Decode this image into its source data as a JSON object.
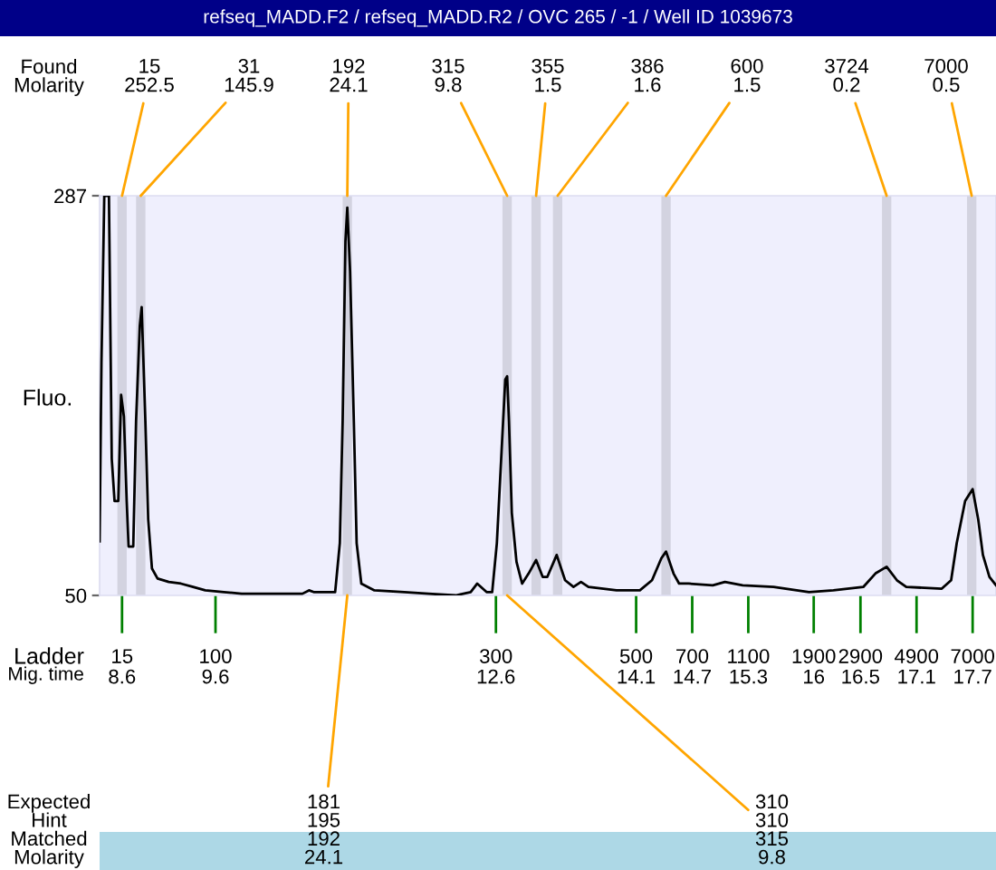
{
  "chart_data": {
    "type": "line",
    "title": "refseq_MADD.F2 / refseq_MADD.R2 / OVC 265 / -1 / Well ID 1039673",
    "xlabel": "Mig. time",
    "ylabel": "Fluo.",
    "x": [
      8.36,
      8.38,
      8.41,
      8.46,
      8.49,
      8.52,
      8.56,
      8.59,
      8.62,
      8.65,
      8.67,
      8.72,
      8.75,
      8.79,
      8.81,
      8.85,
      8.88,
      8.92,
      8.98,
      9.1,
      9.23,
      9.36,
      9.49,
      9.69,
      9.88,
      10.53,
      10.6,
      10.65,
      10.88,
      10.93,
      10.96,
      10.99,
      11.01,
      11.04,
      11.08,
      11.11,
      11.16,
      11.3,
      11.62,
      11.88,
      12.17,
      12.33,
      12.4,
      12.5,
      12.56,
      12.61,
      12.66,
      12.7,
      12.72,
      12.74,
      12.77,
      12.82,
      12.88,
      12.95,
      13.03,
      13.1,
      13.15,
      13.25,
      13.34,
      13.43,
      13.51,
      13.59,
      13.89,
      14.14,
      14.27,
      14.37,
      14.42,
      14.5,
      14.56,
      14.66,
      14.92,
      15.05,
      15.24,
      15.57,
      15.95,
      16.21,
      16.53,
      16.66,
      16.78,
      16.89,
      16.99,
      17.37,
      17.47,
      17.53,
      17.62,
      17.7,
      17.76,
      17.81,
      17.88,
      17.95
    ],
    "series": [
      {
        "color": "#000000",
        "values": [
          82,
          188,
          287,
          287,
          131,
          106,
          106,
          169,
          156,
          106,
          79,
          79,
          153,
          210,
          221,
          153,
          95,
          66,
          60,
          58,
          57,
          55,
          53,
          52,
          51,
          51,
          53,
          52,
          52,
          81,
          153,
          260,
          280,
          242,
          153,
          81,
          57,
          53,
          52,
          51,
          50,
          52,
          57,
          52,
          52,
          81,
          135,
          178,
          180,
          153,
          99,
          70,
          57,
          63,
          71,
          61,
          61,
          74,
          59,
          55,
          58,
          55,
          53,
          53,
          59,
          72,
          76,
          63,
          57,
          57,
          56,
          58,
          56,
          55,
          52,
          53,
          55,
          63,
          67,
          59,
          55,
          54,
          59,
          81,
          106,
          113,
          95,
          74,
          61,
          56
        ]
      }
    ],
    "xlim": [
      8.36,
      17.95
    ],
    "ylim": [
      50,
      287
    ],
    "xticks": [
      8.6,
      9.6,
      12.6,
      14.1,
      14.7,
      15.3,
      16,
      16.5,
      17.1,
      17.7
    ],
    "yticks": [
      50,
      287
    ],
    "bands": [
      {
        "axis": "x",
        "from": 8.55,
        "to": 8.65,
        "label": "15\n252.5",
        "color": "#d3d3e0"
      },
      {
        "axis": "x",
        "from": 8.75,
        "to": 8.85,
        "label": "31\n145.9",
        "color": "#d3d3e0"
      },
      {
        "axis": "x",
        "from": 10.96,
        "to": 11.06,
        "label": "192\n24.1",
        "color": "#d3d3e0"
      },
      {
        "axis": "x",
        "from": 12.67,
        "to": 12.77,
        "label": "315\n9.8",
        "color": "#d3d3e0"
      },
      {
        "axis": "x",
        "from": 12.98,
        "to": 13.08,
        "label": "355\n1.5",
        "color": "#d3d3e0"
      },
      {
        "axis": "x",
        "from": 13.21,
        "to": 13.31,
        "label": "386\n1.6",
        "color": "#d3d3e0"
      },
      {
        "axis": "x",
        "from": 14.37,
        "to": 14.47,
        "label": "600\n1.5",
        "color": "#d3d3e0"
      },
      {
        "axis": "x",
        "from": 16.73,
        "to": 16.83,
        "label": "3724\n0.2",
        "color": "#d3d3e0"
      },
      {
        "axis": "x",
        "from": 17.64,
        "to": 17.74,
        "label": "7000\n0.5",
        "color": "#d3d3e0"
      }
    ],
    "annotations": [
      "Found\nMolarity",
      "Ladder",
      "Expected\nHint\nMatched\nMolarity",
      "15",
      "100",
      "300",
      "500",
      "700",
      "1100",
      "1900",
      "2900",
      "4900",
      "7000",
      {
        "text": "181\n195\n192\n24.1",
        "x": 11.01,
        "y": 50
      },
      {
        "text": "310\n310\n315\n9.8",
        "x": 12.72,
        "y": 50
      }
    ]
  }
}
